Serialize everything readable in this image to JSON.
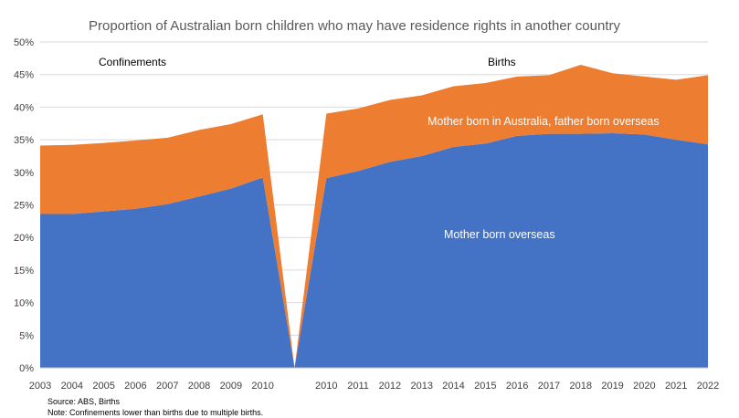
{
  "chart_data": {
    "type": "area",
    "title": "Proportion of Australian born children who may have residence rights in another country",
    "categories": [
      "2003",
      "2004",
      "2005",
      "2006",
      "2007",
      "2008",
      "2009",
      "2010",
      "",
      "2010",
      "2011",
      "2012",
      "2013",
      "2014",
      "2015",
      "2016",
      "2017",
      "2018",
      "2019",
      "2020",
      "2021",
      "2022"
    ],
    "ylim": [
      0,
      50
    ],
    "yticks": [
      "0%",
      "5%",
      "10%",
      "15%",
      "20%",
      "25%",
      "30%",
      "35%",
      "40%",
      "45%",
      "50%"
    ],
    "stacked": true,
    "series": [
      {
        "name": "Mother born overseas",
        "color": "#4472C4",
        "values": [
          23.6,
          23.6,
          24.0,
          24.4,
          25.1,
          26.3,
          27.5,
          29.2,
          0,
          29.1,
          30.2,
          31.6,
          32.5,
          33.9,
          34.4,
          35.6,
          35.9,
          35.9,
          36.0,
          35.8,
          35.0,
          34.3
        ]
      },
      {
        "name": "Mother born in Australia, father born overseas",
        "color": "#ED7D31",
        "values": [
          10.5,
          10.6,
          10.5,
          10.5,
          10.2,
          10.2,
          9.9,
          9.7,
          0,
          9.9,
          9.6,
          9.5,
          9.3,
          9.3,
          9.3,
          9.1,
          9.0,
          10.6,
          9.2,
          8.9,
          9.2,
          10.6
        ]
      }
    ],
    "annotations": {
      "confinements": "Confinements",
      "births": "Births",
      "orange_label": "Mother born in Australia, father born overseas",
      "blue_label": "Mother born overseas"
    },
    "grid": true
  },
  "footer": {
    "source": "Source: ABS, Births",
    "note": "Note: Confinements lower than births due to multiple births."
  }
}
